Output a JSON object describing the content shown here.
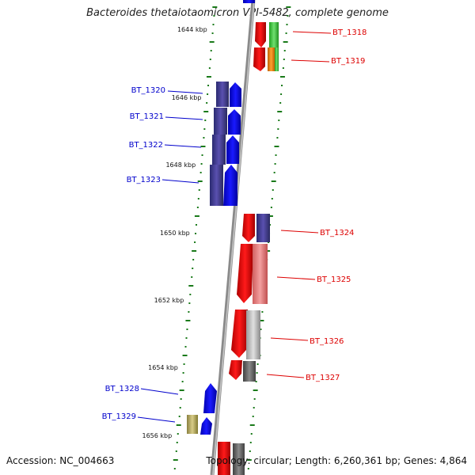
{
  "title": "Bacteroides thetaiotaomicron VPI-5482, complete genome",
  "footer": {
    "accession": "Accession: NC_004663",
    "topology": "Topology: circular; Length: 6,260,361 bp; Genes: 4,864"
  },
  "kbp_ticks": [
    {
      "label": "1644 kbp",
      "value_kbp": 1644
    },
    {
      "label": "1646 kbp",
      "value_kbp": 1646
    },
    {
      "label": "1648 kbp",
      "value_kbp": 1648
    },
    {
      "label": "1650 kbp",
      "value_kbp": 1650
    },
    {
      "label": "1652 kbp",
      "value_kbp": 1652
    },
    {
      "label": "1654 kbp",
      "value_kbp": 1654
    },
    {
      "label": "1656 kbp",
      "value_kbp": 1656
    }
  ],
  "gene_labels": [
    {
      "name": "BT_1318",
      "strand": "forward",
      "color": "#dd0000"
    },
    {
      "name": "BT_1319",
      "strand": "forward",
      "color": "#dd0000"
    },
    {
      "name": "BT_1320",
      "strand": "reverse",
      "color": "#0000cc"
    },
    {
      "name": "BT_1321",
      "strand": "reverse",
      "color": "#0000cc"
    },
    {
      "name": "BT_1322",
      "strand": "reverse",
      "color": "#0000cc"
    },
    {
      "name": "BT_1323",
      "strand": "reverse",
      "color": "#0000cc"
    },
    {
      "name": "BT_1324",
      "strand": "forward",
      "color": "#dd0000"
    },
    {
      "name": "BT_1325",
      "strand": "forward",
      "color": "#dd0000"
    },
    {
      "name": "BT_1326",
      "strand": "forward",
      "color": "#dd0000"
    },
    {
      "name": "BT_1327",
      "strand": "forward",
      "color": "#dd0000"
    },
    {
      "name": "BT_1328",
      "strand": "reverse",
      "color": "#0000cc"
    },
    {
      "name": "BT_1329",
      "strand": "reverse",
      "color": "#0000cc"
    }
  ],
  "colors": {
    "forward_gene": "#ff0000",
    "reverse_gene": "#0000ff",
    "backbone": "#8a8a8a",
    "tick": "#1a7a1a"
  }
}
